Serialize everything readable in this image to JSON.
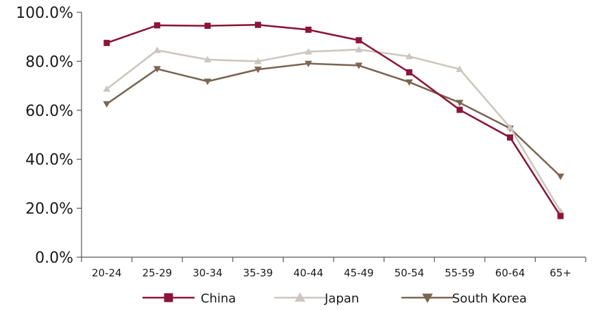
{
  "chart_data": {
    "type": "line",
    "title": "",
    "xlabel": "",
    "ylabel": "",
    "categories": [
      "20-24",
      "25-29",
      "30-34",
      "35-39",
      "40-44",
      "45-49",
      "50-54",
      "55-59",
      "60-64",
      "65+"
    ],
    "ylim": [
      0,
      100
    ],
    "yticks": [
      0,
      20,
      40,
      60,
      80,
      100
    ],
    "ytick_labels": [
      "0.0%",
      "20.0%",
      "40.0%",
      "60.0%",
      "80.0%",
      "100.0%"
    ],
    "grid": false,
    "legend_position": "bottom",
    "series": [
      {
        "name": "China",
        "marker": "square",
        "color": "#8b1538",
        "values": [
          87.5,
          94.7,
          94.5,
          94.9,
          92.9,
          88.6,
          75.5,
          60.2,
          48.9,
          16.8
        ]
      },
      {
        "name": "Japan",
        "marker": "triangle-up",
        "color": "#cdc6bf",
        "values": [
          68.7,
          84.5,
          80.7,
          80.0,
          83.9,
          84.8,
          82.0,
          76.8,
          53.0,
          18.8
        ]
      },
      {
        "name": "South Korea",
        "marker": "triangle-down",
        "color": "#7a6652",
        "values": [
          62.6,
          76.9,
          71.8,
          76.7,
          79.1,
          78.3,
          71.5,
          63.1,
          52.6,
          33.0
        ]
      }
    ]
  }
}
